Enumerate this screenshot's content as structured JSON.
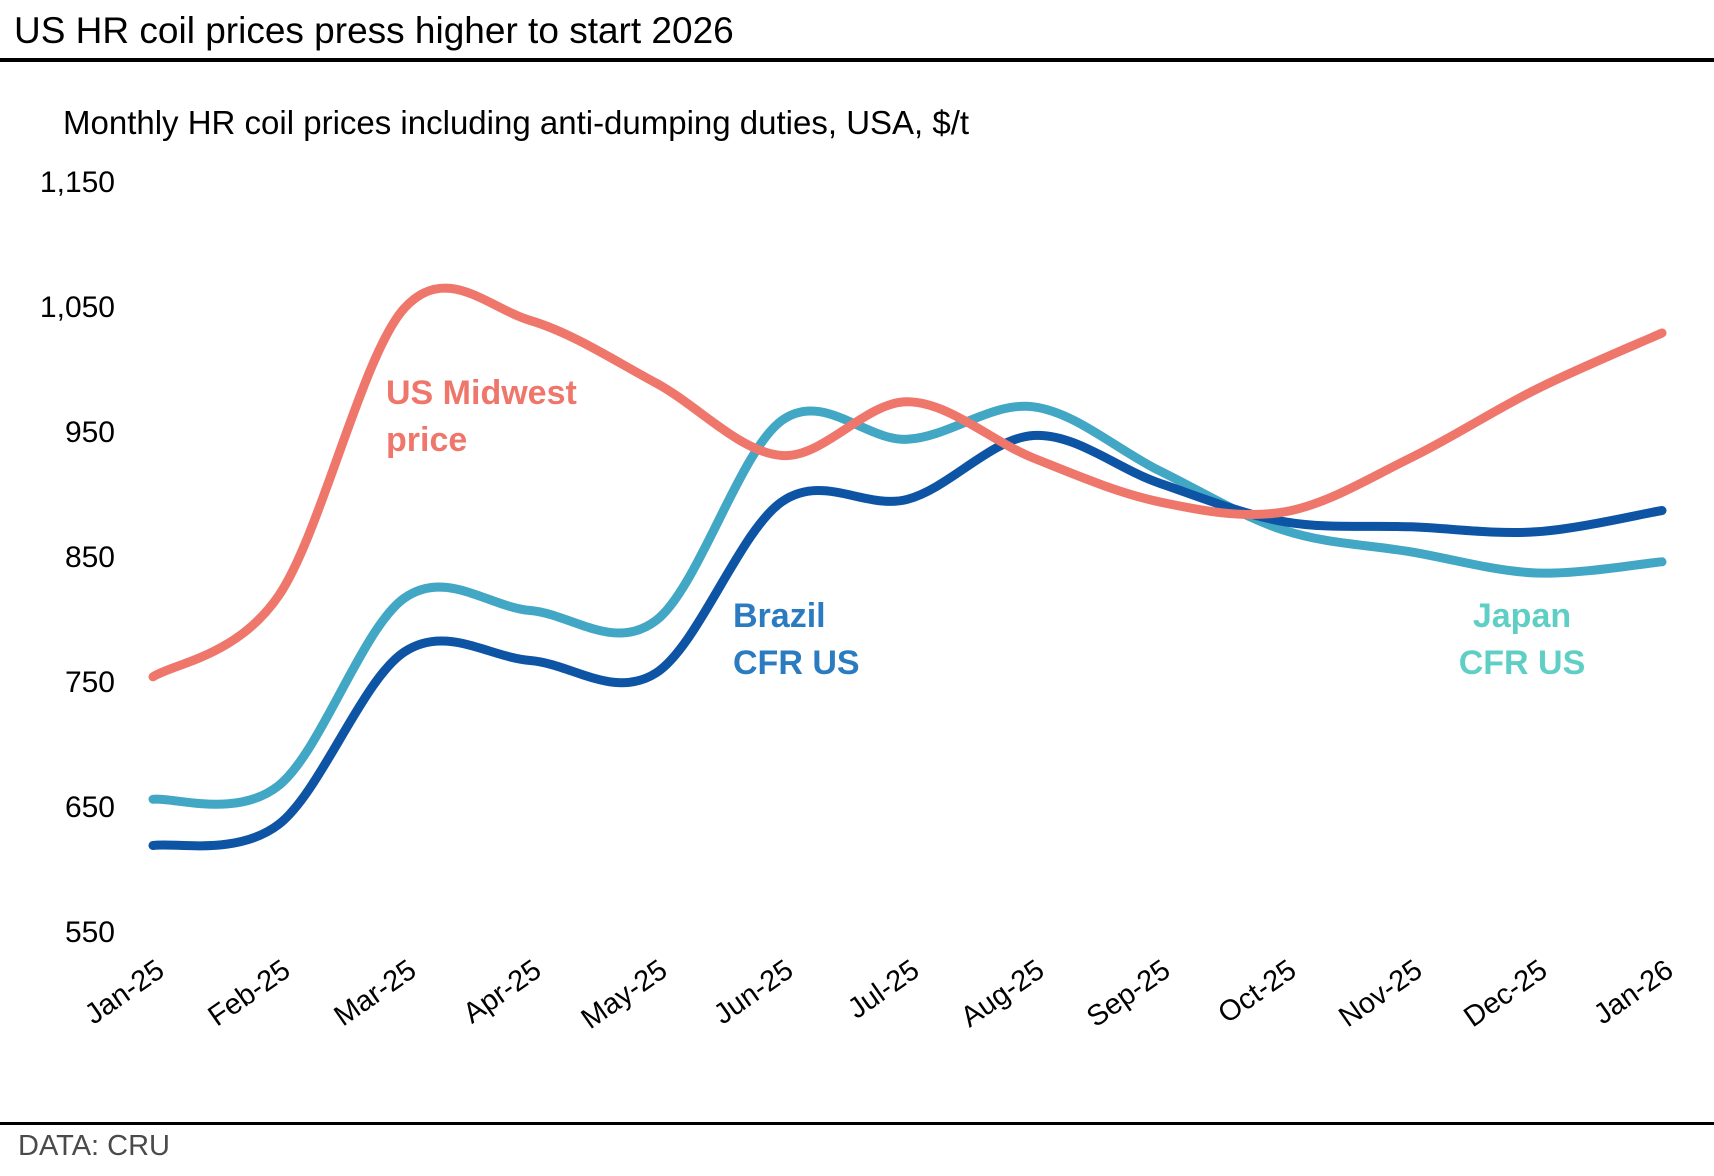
{
  "header": {
    "title": "US HR coil prices press higher to start 2026",
    "subtitle": "Monthly HR coil prices including anti-dumping duties, USA, $/t"
  },
  "footer": {
    "source": "DATA: CRU"
  },
  "colors": {
    "us_midwest_line": "#EF766B",
    "japan_line": "#41A7C4",
    "brazil_line": "#0D55A4",
    "us_midwest_label": "#EF766B",
    "brazil_label": "#2B7BC0",
    "japan_label": "#5FCFC6",
    "axis_text": "#000000",
    "source_text": "#4a4a4a"
  },
  "annotations": {
    "us_midwest": {
      "line1": "US Midwest",
      "line2": "price"
    },
    "brazil": {
      "line1": "Brazil",
      "line2": "CFR US"
    },
    "japan": {
      "line1": "Japan",
      "line2": "CFR US"
    }
  },
  "chart_data": {
    "type": "line",
    "title": "US HR coil prices press higher to start 2026",
    "subtitle": "Monthly HR coil prices including anti-dumping duties, USA, $/t",
    "xlabel": "",
    "ylabel": "$/t",
    "x": [
      "Jan-25",
      "Feb-25",
      "Mar-25",
      "Apr-25",
      "May-25",
      "Jun-25",
      "Jul-25",
      "Aug-25",
      "Sep-25",
      "Oct-25",
      "Nov-25",
      "Dec-25",
      "Jan-26"
    ],
    "ylim": [
      550,
      1150
    ],
    "ytick_values": [
      1150,
      1050,
      950,
      850,
      750,
      650,
      550
    ],
    "ytick_labels": [
      "1,150",
      "1,050",
      "950",
      "850",
      "750",
      "650",
      "550"
    ],
    "grid": false,
    "legend_position": "inline-annotations",
    "series": [
      {
        "key": "japan",
        "name": "Japan CFR US",
        "color": "#41A7C4",
        "label_color": "#5FCFC6",
        "values": [
          657,
          668,
          818,
          808,
          800,
          960,
          945,
          971,
          920,
          872,
          855,
          838,
          847
        ]
      },
      {
        "key": "brazil",
        "name": "Brazil CFR US",
        "color": "#0D55A4",
        "label_color": "#2B7BC0",
        "values": [
          620,
          637,
          775,
          768,
          758,
          895,
          897,
          948,
          910,
          879,
          875,
          871,
          888
        ]
      },
      {
        "key": "us_midwest",
        "name": "US Midwest price",
        "color": "#EF766B",
        "label_color": "#EF766B",
        "values": [
          755,
          820,
          1050,
          1040,
          990,
          932,
          975,
          930,
          895,
          887,
          930,
          985,
          1030
        ]
      }
    ]
  }
}
